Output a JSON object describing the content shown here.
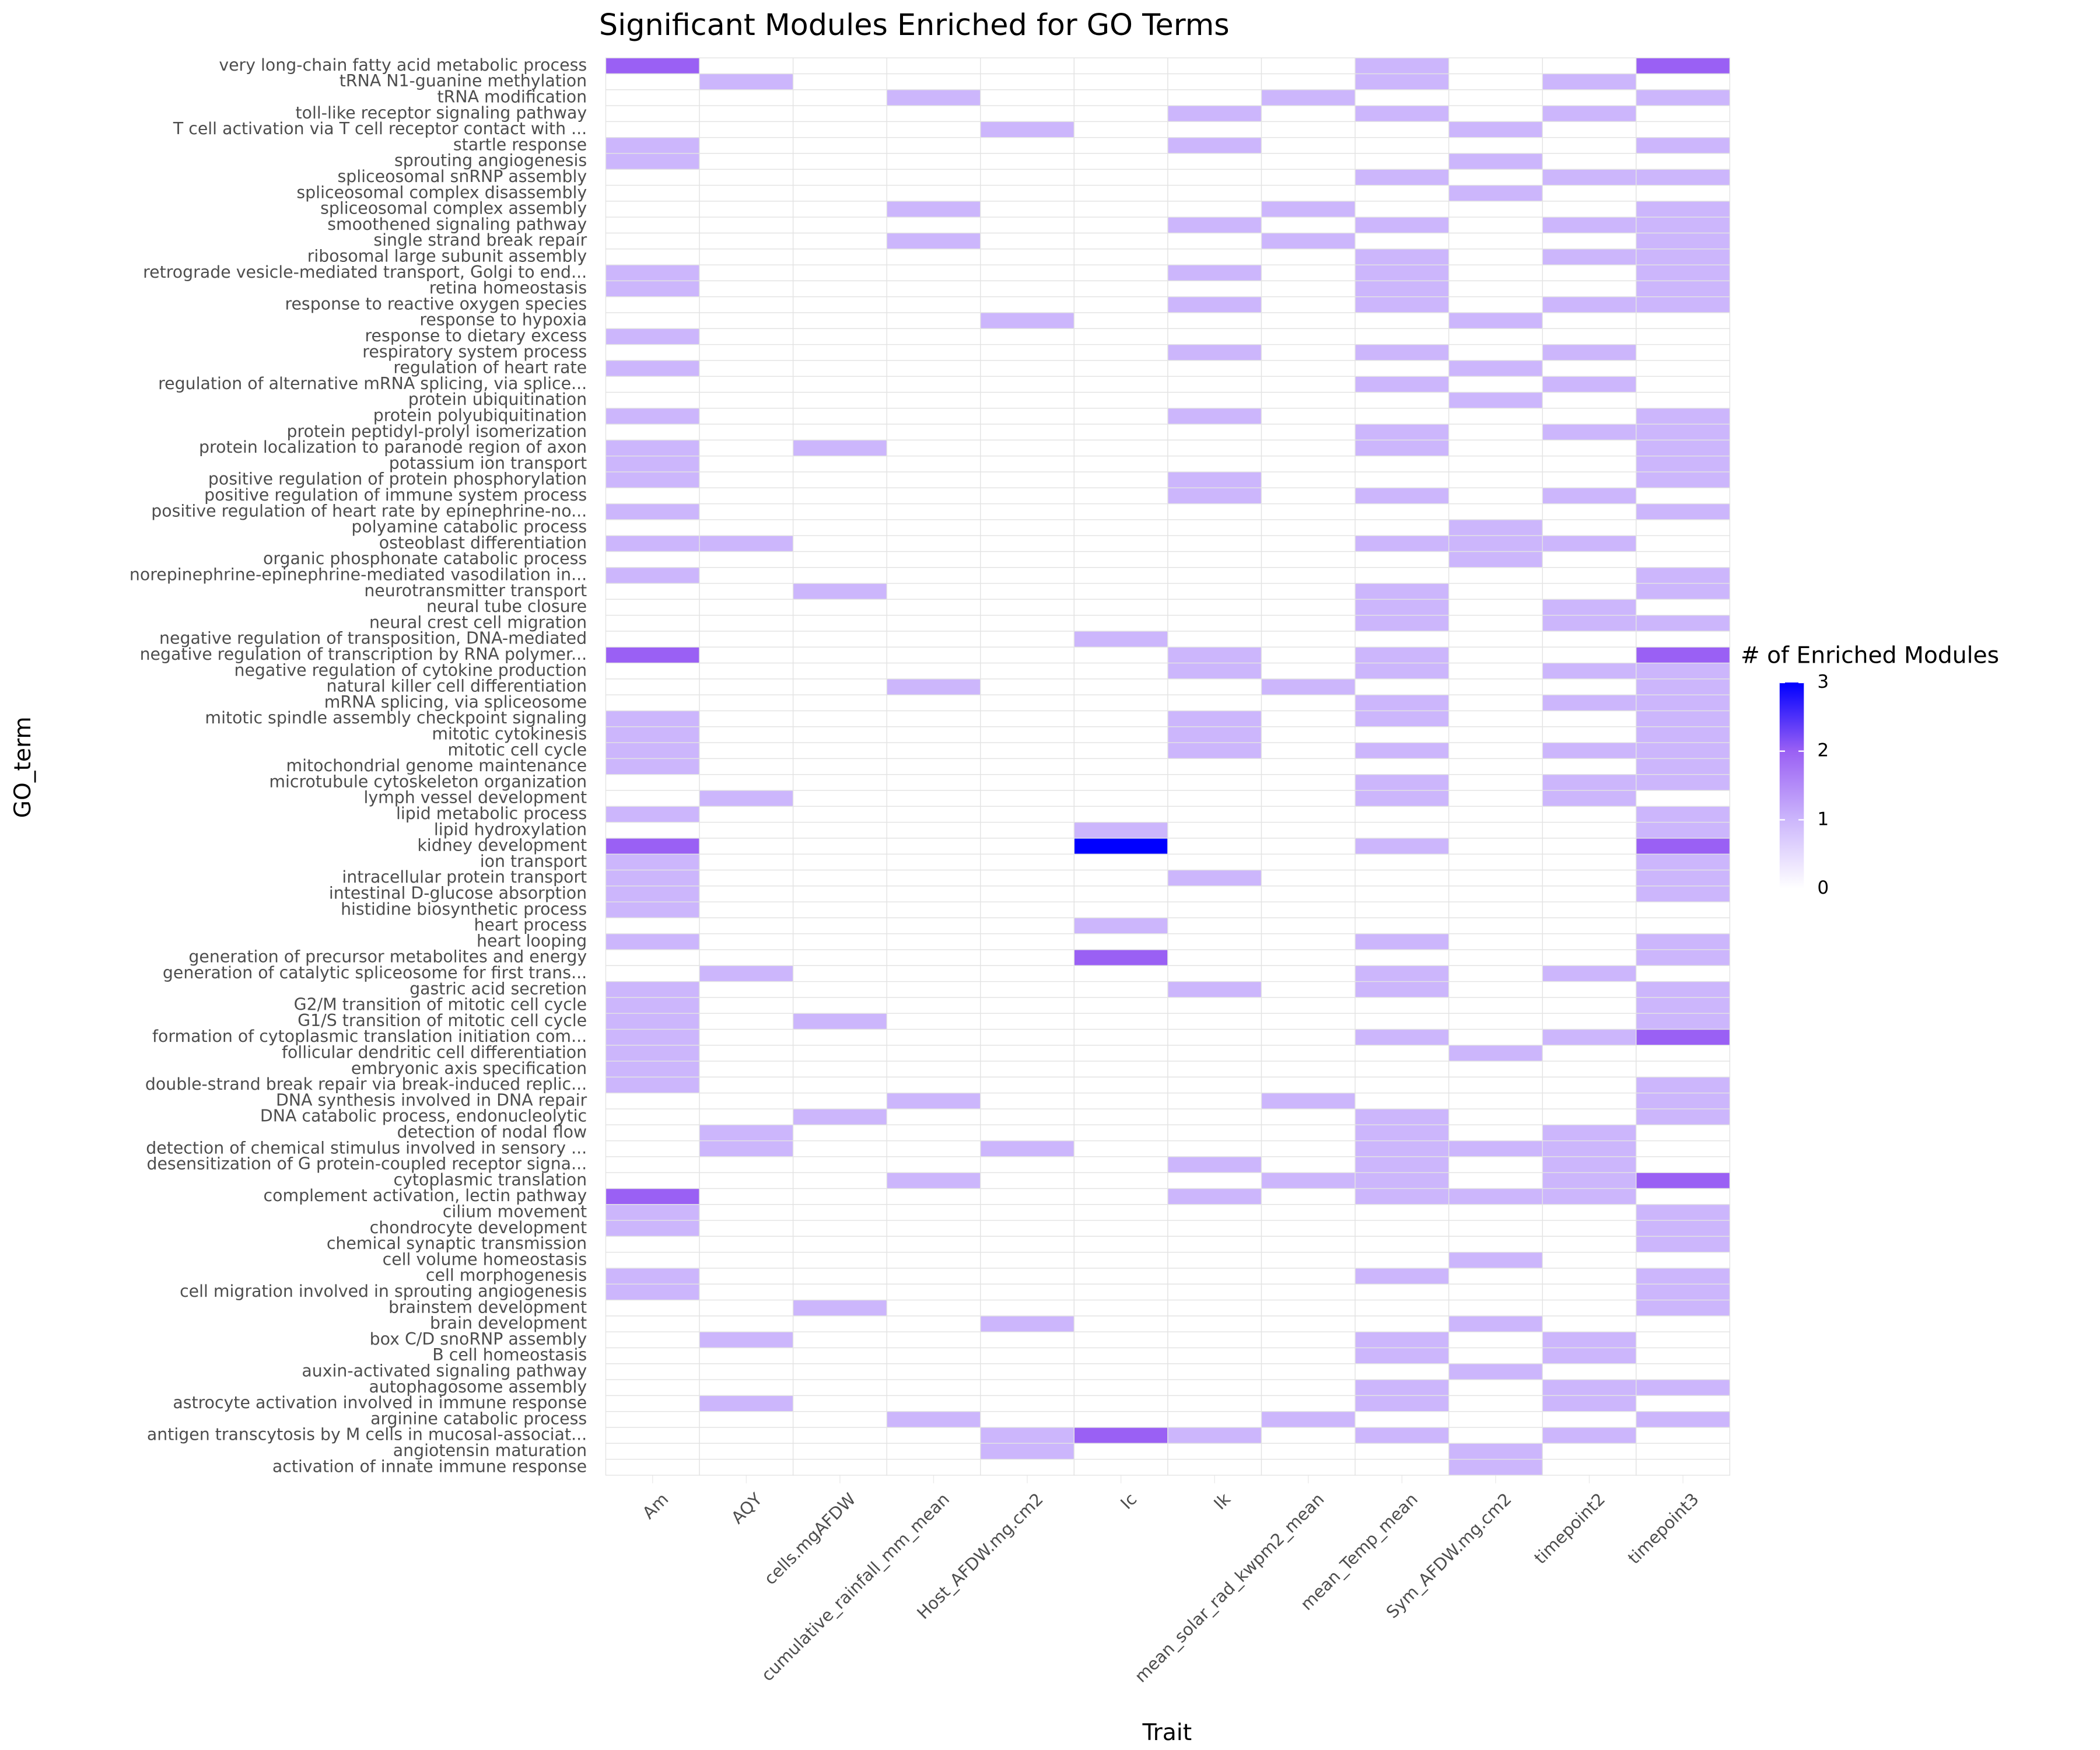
{
  "chart_data": {
    "type": "heatmap",
    "title": "Significant Modules Enriched for GO Terms",
    "x_label": "Trait",
    "y_label": "GO_term",
    "x_categories": [
      "Am",
      "AQY",
      "cells.mgAFDW",
      "cumulative_rainfall_mm_mean",
      "Host_AFDW.mg.cm2",
      "Ic",
      "Ik",
      "mean_solar_rad_kwpm2_mean",
      "mean_Temp_mean",
      "Sym_AFDW.mg.cm2",
      "timepoint2",
      "timepoint3"
    ],
    "y_categories": [
      "very long-chain fatty acid metabolic process",
      "tRNA N1-guanine methylation",
      "tRNA modification",
      "toll-like receptor signaling pathway",
      "T cell activation via T cell receptor contact with ...",
      "startle response",
      "sprouting angiogenesis",
      "spliceosomal snRNP assembly",
      "spliceosomal complex disassembly",
      "spliceosomal complex assembly",
      "smoothened signaling pathway",
      "single strand break repair",
      "ribosomal large subunit assembly",
      "retrograde vesicle-mediated transport, Golgi to end...",
      "retina homeostasis",
      "response to reactive oxygen species",
      "response to hypoxia",
      "response to dietary excess",
      "respiratory system process",
      "regulation of heart rate",
      "regulation of alternative mRNA splicing, via splice...",
      "protein ubiquitination",
      "protein polyubiquitination",
      "protein peptidyl-prolyl isomerization",
      "protein localization to paranode region of axon",
      "potassium ion transport",
      "positive regulation of protein phosphorylation",
      "positive regulation of immune system process",
      "positive regulation of heart rate by epinephrine-no...",
      "polyamine catabolic process",
      "osteoblast differentiation",
      "organic phosphonate catabolic process",
      "norepinephrine-epinephrine-mediated vasodilation in...",
      "neurotransmitter transport",
      "neural tube closure",
      "neural crest cell migration",
      "negative regulation of transposition, DNA-mediated",
      "negative regulation of transcription by RNA polymer...",
      "negative regulation of cytokine production",
      "natural killer cell differentiation",
      "mRNA splicing, via spliceosome",
      "mitotic spindle assembly checkpoint signaling",
      "mitotic cytokinesis",
      "mitotic cell cycle",
      "mitochondrial genome maintenance",
      "microtubule cytoskeleton organization",
      "lymph vessel development",
      "lipid metabolic process",
      "lipid hydroxylation",
      "kidney development",
      "ion transport",
      "intracellular protein transport",
      "intestinal D-glucose absorption",
      "histidine biosynthetic process",
      "heart process",
      "heart looping",
      "generation of precursor metabolites and energy",
      "generation of catalytic spliceosome for first trans...",
      "gastric acid secretion",
      "G2/M transition of mitotic cell cycle",
      "G1/S transition of mitotic cell cycle",
      "formation of cytoplasmic translation initiation com...",
      "follicular dendritic cell differentiation",
      "embryonic axis specification",
      "double-strand break repair via break-induced replic...",
      "DNA synthesis involved in DNA repair",
      "DNA catabolic process, endonucleolytic",
      "detection of nodal flow",
      "detection of chemical stimulus involved in sensory ...",
      "desensitization of G protein-coupled receptor signa...",
      "cytoplasmic translation",
      "complement activation, lectin pathway",
      "cilium movement",
      "chondrocyte development",
      "chemical synaptic transmission",
      "cell volume homeostasis",
      "cell morphogenesis",
      "cell migration involved in sprouting angiogenesis",
      "brainstem development",
      "brain development",
      "box C/D snoRNP assembly",
      "B cell homeostasis",
      "auxin-activated signaling pathway",
      "autophagosome assembly",
      "astrocyte activation involved in immune response",
      "arginine catabolic process",
      "antigen transcytosis by M cells in mucosal-associat...",
      "angiotensin maturation",
      "activation of innate immune response"
    ],
    "values": [
      [
        2,
        0,
        0,
        0,
        0,
        0,
        0,
        0,
        1,
        0,
        0,
        2
      ],
      [
        0,
        1,
        0,
        0,
        0,
        0,
        0,
        0,
        1,
        0,
        1,
        0
      ],
      [
        0,
        0,
        0,
        1,
        0,
        0,
        0,
        1,
        0,
        0,
        0,
        1
      ],
      [
        0,
        0,
        0,
        0,
        0,
        0,
        1,
        0,
        1,
        0,
        1,
        0
      ],
      [
        0,
        0,
        0,
        0,
        1,
        0,
        0,
        0,
        0,
        1,
        0,
        0
      ],
      [
        1,
        0,
        0,
        0,
        0,
        0,
        1,
        0,
        0,
        0,
        0,
        1
      ],
      [
        1,
        0,
        0,
        0,
        0,
        0,
        0,
        0,
        0,
        1,
        0,
        0
      ],
      [
        0,
        0,
        0,
        0,
        0,
        0,
        0,
        0,
        1,
        0,
        1,
        1
      ],
      [
        0,
        0,
        0,
        0,
        0,
        0,
        0,
        0,
        0,
        1,
        0,
        0
      ],
      [
        0,
        0,
        0,
        1,
        0,
        0,
        0,
        1,
        0,
        0,
        0,
        1
      ],
      [
        0,
        0,
        0,
        0,
        0,
        0,
        1,
        0,
        1,
        0,
        1,
        1
      ],
      [
        0,
        0,
        0,
        1,
        0,
        0,
        0,
        1,
        0,
        0,
        0,
        1
      ],
      [
        0,
        0,
        0,
        0,
        0,
        0,
        0,
        0,
        1,
        0,
        1,
        1
      ],
      [
        1,
        0,
        0,
        0,
        0,
        0,
        1,
        0,
        1,
        0,
        0,
        1
      ],
      [
        1,
        0,
        0,
        0,
        0,
        0,
        0,
        0,
        1,
        0,
        0,
        1
      ],
      [
        0,
        0,
        0,
        0,
        0,
        0,
        1,
        0,
        1,
        0,
        1,
        1
      ],
      [
        0,
        0,
        0,
        0,
        1,
        0,
        0,
        0,
        0,
        1,
        0,
        0
      ],
      [
        1,
        0,
        0,
        0,
        0,
        0,
        0,
        0,
        0,
        0,
        0,
        0
      ],
      [
        0,
        0,
        0,
        0,
        0,
        0,
        1,
        0,
        1,
        0,
        1,
        0
      ],
      [
        1,
        0,
        0,
        0,
        0,
        0,
        0,
        0,
        0,
        1,
        0,
        0
      ],
      [
        0,
        0,
        0,
        0,
        0,
        0,
        0,
        0,
        1,
        0,
        1,
        0
      ],
      [
        0,
        0,
        0,
        0,
        0,
        0,
        0,
        0,
        0,
        1,
        0,
        0
      ],
      [
        1,
        0,
        0,
        0,
        0,
        0,
        1,
        0,
        0,
        0,
        0,
        1
      ],
      [
        0,
        0,
        0,
        0,
        0,
        0,
        0,
        0,
        1,
        0,
        1,
        1
      ],
      [
        1,
        0,
        1,
        0,
        0,
        0,
        0,
        0,
        1,
        0,
        0,
        1
      ],
      [
        1,
        0,
        0,
        0,
        0,
        0,
        0,
        0,
        0,
        0,
        0,
        1
      ],
      [
        1,
        0,
        0,
        0,
        0,
        0,
        1,
        0,
        0,
        0,
        0,
        1
      ],
      [
        0,
        0,
        0,
        0,
        0,
        0,
        1,
        0,
        1,
        0,
        1,
        0
      ],
      [
        1,
        0,
        0,
        0,
        0,
        0,
        0,
        0,
        0,
        0,
        0,
        1
      ],
      [
        0,
        0,
        0,
        0,
        0,
        0,
        0,
        0,
        0,
        1,
        0,
        0
      ],
      [
        1,
        1,
        0,
        0,
        0,
        0,
        0,
        0,
        1,
        1,
        1,
        0
      ],
      [
        0,
        0,
        0,
        0,
        0,
        0,
        0,
        0,
        0,
        1,
        0,
        0
      ],
      [
        1,
        0,
        0,
        0,
        0,
        0,
        0,
        0,
        0,
        0,
        0,
        1
      ],
      [
        0,
        0,
        1,
        0,
        0,
        0,
        0,
        0,
        1,
        0,
        0,
        1
      ],
      [
        0,
        0,
        0,
        0,
        0,
        0,
        0,
        0,
        1,
        0,
        1,
        0
      ],
      [
        0,
        0,
        0,
        0,
        0,
        0,
        0,
        0,
        1,
        0,
        1,
        1
      ],
      [
        0,
        0,
        0,
        0,
        0,
        1,
        0,
        0,
        0,
        0,
        0,
        0
      ],
      [
        2,
        0,
        0,
        0,
        0,
        0,
        1,
        0,
        1,
        0,
        0,
        2
      ],
      [
        0,
        0,
        0,
        0,
        0,
        0,
        1,
        0,
        1,
        0,
        1,
        1
      ],
      [
        0,
        0,
        0,
        1,
        0,
        0,
        0,
        1,
        0,
        0,
        0,
        1
      ],
      [
        0,
        0,
        0,
        0,
        0,
        0,
        0,
        0,
        1,
        0,
        1,
        1
      ],
      [
        1,
        0,
        0,
        0,
        0,
        0,
        1,
        0,
        1,
        0,
        0,
        1
      ],
      [
        1,
        0,
        0,
        0,
        0,
        0,
        1,
        0,
        0,
        0,
        0,
        1
      ],
      [
        1,
        0,
        0,
        0,
        0,
        0,
        1,
        0,
        1,
        0,
        1,
        1
      ],
      [
        1,
        0,
        0,
        0,
        0,
        0,
        0,
        0,
        0,
        0,
        0,
        1
      ],
      [
        0,
        0,
        0,
        0,
        0,
        0,
        0,
        0,
        1,
        0,
        1,
        1
      ],
      [
        0,
        1,
        0,
        0,
        0,
        0,
        0,
        0,
        1,
        0,
        1,
        0
      ],
      [
        1,
        0,
        0,
        0,
        0,
        0,
        0,
        0,
        0,
        0,
        0,
        1
      ],
      [
        0,
        0,
        0,
        0,
        0,
        1,
        0,
        0,
        0,
        0,
        0,
        1
      ],
      [
        2,
        0,
        0,
        0,
        0,
        3,
        0,
        0,
        1,
        0,
        0,
        2
      ],
      [
        1,
        0,
        0,
        0,
        0,
        0,
        0,
        0,
        0,
        0,
        0,
        1
      ],
      [
        1,
        0,
        0,
        0,
        0,
        0,
        1,
        0,
        0,
        0,
        0,
        1
      ],
      [
        1,
        0,
        0,
        0,
        0,
        0,
        0,
        0,
        0,
        0,
        0,
        1
      ],
      [
        1,
        0,
        0,
        0,
        0,
        0,
        0,
        0,
        0,
        0,
        0,
        0
      ],
      [
        0,
        0,
        0,
        0,
        0,
        1,
        0,
        0,
        0,
        0,
        0,
        0
      ],
      [
        1,
        0,
        0,
        0,
        0,
        0,
        0,
        0,
        1,
        0,
        0,
        1
      ],
      [
        0,
        0,
        0,
        0,
        0,
        2,
        0,
        0,
        0,
        0,
        0,
        1
      ],
      [
        0,
        1,
        0,
        0,
        0,
        0,
        0,
        0,
        1,
        0,
        1,
        0
      ],
      [
        1,
        0,
        0,
        0,
        0,
        0,
        1,
        0,
        1,
        0,
        0,
        1
      ],
      [
        1,
        0,
        0,
        0,
        0,
        0,
        0,
        0,
        0,
        0,
        0,
        1
      ],
      [
        1,
        0,
        1,
        0,
        0,
        0,
        0,
        0,
        0,
        0,
        0,
        1
      ],
      [
        1,
        0,
        0,
        0,
        0,
        0,
        0,
        0,
        1,
        0,
        1,
        2
      ],
      [
        1,
        0,
        0,
        0,
        0,
        0,
        0,
        0,
        0,
        1,
        0,
        0
      ],
      [
        1,
        0,
        0,
        0,
        0,
        0,
        0,
        0,
        0,
        0,
        0,
        0
      ],
      [
        1,
        0,
        0,
        0,
        0,
        0,
        0,
        0,
        0,
        0,
        0,
        1
      ],
      [
        0,
        0,
        0,
        1,
        0,
        0,
        0,
        1,
        0,
        0,
        0,
        1
      ],
      [
        0,
        0,
        1,
        0,
        0,
        0,
        0,
        0,
        1,
        0,
        0,
        1
      ],
      [
        0,
        1,
        0,
        0,
        0,
        0,
        0,
        0,
        1,
        0,
        1,
        0
      ],
      [
        0,
        1,
        0,
        0,
        1,
        0,
        0,
        0,
        1,
        1,
        1,
        0
      ],
      [
        0,
        0,
        0,
        0,
        0,
        0,
        1,
        0,
        1,
        0,
        1,
        0
      ],
      [
        0,
        0,
        0,
        1,
        0,
        0,
        0,
        1,
        1,
        0,
        1,
        2
      ],
      [
        2,
        0,
        0,
        0,
        0,
        0,
        1,
        0,
        1,
        1,
        1,
        0
      ],
      [
        1,
        0,
        0,
        0,
        0,
        0,
        0,
        0,
        0,
        0,
        0,
        1
      ],
      [
        1,
        0,
        0,
        0,
        0,
        0,
        0,
        0,
        0,
        0,
        0,
        1
      ],
      [
        0,
        0,
        0,
        0,
        0,
        0,
        0,
        0,
        0,
        0,
        0,
        1
      ],
      [
        0,
        0,
        0,
        0,
        0,
        0,
        0,
        0,
        0,
        1,
        0,
        0
      ],
      [
        1,
        0,
        0,
        0,
        0,
        0,
        0,
        0,
        1,
        0,
        0,
        1
      ],
      [
        1,
        0,
        0,
        0,
        0,
        0,
        0,
        0,
        0,
        0,
        0,
        1
      ],
      [
        0,
        0,
        1,
        0,
        0,
        0,
        0,
        0,
        0,
        0,
        0,
        1
      ],
      [
        0,
        0,
        0,
        0,
        1,
        0,
        0,
        0,
        0,
        1,
        0,
        0
      ],
      [
        0,
        1,
        0,
        0,
        0,
        0,
        0,
        0,
        1,
        0,
        1,
        0
      ],
      [
        0,
        0,
        0,
        0,
        0,
        0,
        0,
        0,
        1,
        0,
        1,
        0
      ],
      [
        0,
        0,
        0,
        0,
        0,
        0,
        0,
        0,
        0,
        1,
        0,
        0
      ],
      [
        0,
        0,
        0,
        0,
        0,
        0,
        0,
        0,
        1,
        0,
        1,
        1
      ],
      [
        0,
        1,
        0,
        0,
        0,
        0,
        0,
        0,
        1,
        0,
        1,
        0
      ],
      [
        0,
        0,
        0,
        1,
        0,
        0,
        0,
        1,
        0,
        0,
        0,
        1
      ],
      [
        0,
        0,
        0,
        0,
        1,
        2,
        1,
        0,
        1,
        0,
        1,
        0
      ],
      [
        0,
        0,
        0,
        0,
        1,
        0,
        0,
        0,
        0,
        1,
        0,
        0
      ],
      [
        0,
        0,
        0,
        0,
        0,
        0,
        0,
        0,
        0,
        1,
        0,
        0
      ]
    ],
    "colorbar": {
      "title": "# of Enriched Modules",
      "lim": [
        0,
        3
      ],
      "ticks": [
        0,
        1,
        2,
        3
      ],
      "colors": [
        "#ffffff",
        "#ccb6fc",
        "#9a60f4",
        "#0000ff"
      ]
    }
  }
}
